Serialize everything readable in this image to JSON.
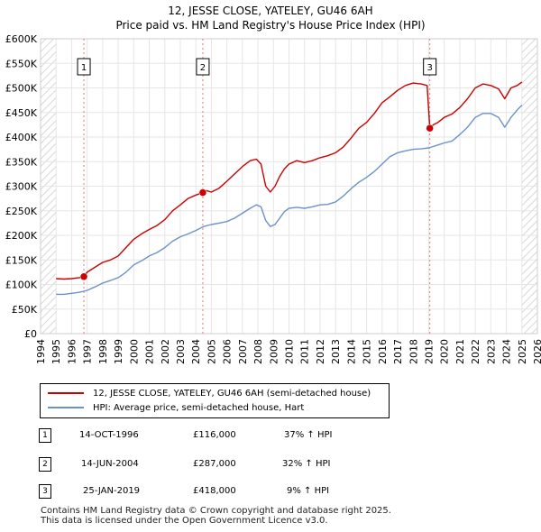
{
  "title": "12, JESSE CLOSE, YATELEY, GU46 6AH",
  "subtitle": "Price paid vs. HM Land Registry's House Price Index (HPI)",
  "chart_data": {
    "type": "line",
    "title": "12, JESSE CLOSE, YATELEY, GU46 6AH",
    "subtitle": "Price paid vs. HM Land Registry's House Price Index (HPI)",
    "xlim": [
      1994,
      2026
    ],
    "ylim": [
      0,
      600000
    ],
    "x_ticks": [
      "1994",
      "1995",
      "1996",
      "1997",
      "1998",
      "1999",
      "2000",
      "2001",
      "2002",
      "2003",
      "2004",
      "2005",
      "2006",
      "2007",
      "2008",
      "2009",
      "2010",
      "2011",
      "2012",
      "2013",
      "2014",
      "2015",
      "2016",
      "2017",
      "2018",
      "2019",
      "2020",
      "2021",
      "2022",
      "2023",
      "2024",
      "2025",
      "2026"
    ],
    "y_ticks": [
      {
        "value": 0,
        "label": "£0"
      },
      {
        "value": 50000,
        "label": "£50K"
      },
      {
        "value": 100000,
        "label": "£100K"
      },
      {
        "value": 150000,
        "label": "£150K"
      },
      {
        "value": 200000,
        "label": "£200K"
      },
      {
        "value": 250000,
        "label": "£250K"
      },
      {
        "value": 300000,
        "label": "£300K"
      },
      {
        "value": 350000,
        "label": "£350K"
      },
      {
        "value": 400000,
        "label": "£400K"
      },
      {
        "value": 450000,
        "label": "£450K"
      },
      {
        "value": 500000,
        "label": "£500K"
      },
      {
        "value": 550000,
        "label": "£550K"
      },
      {
        "value": 600000,
        "label": "£600K"
      }
    ],
    "grid": true,
    "hatched_ranges": [
      [
        1994,
        1995.0
      ],
      [
        2025.0,
        2026
      ]
    ],
    "series": [
      {
        "name": "12, JESSE CLOSE, YATELEY, GU46 6AH (semi-detached house)",
        "color": "#cc0000",
        "x": [
          1995.0,
          1995.5,
          1996.0,
          1996.5,
          1996.79,
          1997.0,
          1997.5,
          1998.0,
          1998.5,
          1999.0,
          1999.5,
          2000.0,
          2000.5,
          2001.0,
          2001.5,
          2002.0,
          2002.5,
          2003.0,
          2003.5,
          2004.0,
          2004.45,
          2004.7,
          2005.0,
          2005.5,
          2006.0,
          2006.5,
          2007.0,
          2007.5,
          2007.9,
          2008.2,
          2008.5,
          2008.8,
          2009.1,
          2009.4,
          2009.7,
          2010.0,
          2010.5,
          2011.0,
          2011.5,
          2012.0,
          2012.5,
          2013.0,
          2013.5,
          2014.0,
          2014.5,
          2015.0,
          2015.5,
          2016.0,
          2016.5,
          2017.0,
          2017.5,
          2018.0,
          2018.5,
          2018.9,
          2019.07,
          2019.3,
          2019.6,
          2020.0,
          2020.5,
          2021.0,
          2021.5,
          2022.0,
          2022.5,
          2023.0,
          2023.5,
          2023.9,
          2024.3,
          2024.7,
          2025.0
        ],
        "values": [
          112000,
          111000,
          112000,
          114000,
          116000,
          125000,
          135000,
          145000,
          150000,
          158000,
          175000,
          192000,
          203000,
          212000,
          220000,
          232000,
          250000,
          262000,
          275000,
          282000,
          287000,
          291000,
          288000,
          296000,
          310000,
          325000,
          340000,
          352000,
          355000,
          345000,
          300000,
          288000,
          300000,
          320000,
          335000,
          345000,
          352000,
          348000,
          352000,
          358000,
          362000,
          368000,
          380000,
          398000,
          418000,
          430000,
          448000,
          470000,
          482000,
          495000,
          505000,
          510000,
          508000,
          505000,
          418000,
          425000,
          430000,
          440000,
          447000,
          460000,
          478000,
          500000,
          508000,
          505000,
          498000,
          478000,
          500000,
          505000,
          512000
        ]
      },
      {
        "name": "HPI: Average price, semi-detached house, Hart",
        "color": "#6b93c9",
        "x": [
          1995.0,
          1995.5,
          1996.0,
          1996.5,
          1997.0,
          1997.5,
          1998.0,
          1998.5,
          1999.0,
          1999.5,
          2000.0,
          2000.5,
          2001.0,
          2001.5,
          2002.0,
          2002.5,
          2003.0,
          2003.5,
          2004.0,
          2004.5,
          2005.0,
          2005.5,
          2006.0,
          2006.5,
          2007.0,
          2007.5,
          2007.9,
          2008.2,
          2008.5,
          2008.8,
          2009.1,
          2009.4,
          2009.7,
          2010.0,
          2010.5,
          2011.0,
          2011.5,
          2012.0,
          2012.5,
          2013.0,
          2013.5,
          2014.0,
          2014.5,
          2015.0,
          2015.5,
          2016.0,
          2016.5,
          2017.0,
          2017.5,
          2018.0,
          2018.5,
          2019.0,
          2019.5,
          2020.0,
          2020.5,
          2021.0,
          2021.5,
          2022.0,
          2022.5,
          2023.0,
          2023.5,
          2023.9,
          2024.3,
          2024.7,
          2025.0
        ],
        "values": [
          80000,
          80000,
          82000,
          84000,
          88000,
          95000,
          103000,
          108000,
          114000,
          125000,
          140000,
          148000,
          158000,
          165000,
          175000,
          188000,
          197000,
          203000,
          210000,
          218000,
          222000,
          225000,
          228000,
          235000,
          245000,
          255000,
          262000,
          258000,
          230000,
          218000,
          222000,
          235000,
          248000,
          255000,
          257000,
          255000,
          258000,
          262000,
          263000,
          268000,
          280000,
          295000,
          308000,
          318000,
          330000,
          345000,
          360000,
          368000,
          372000,
          375000,
          376000,
          378000,
          383000,
          388000,
          392000,
          405000,
          420000,
          440000,
          448000,
          448000,
          440000,
          420000,
          440000,
          455000,
          465000
        ]
      }
    ],
    "annotations": [
      {
        "label": "1",
        "x": 1996.79,
        "value": 116000
      },
      {
        "label": "2",
        "x": 2004.45,
        "value": 287000
      },
      {
        "label": "3",
        "x": 2019.07,
        "value": 418000
      }
    ]
  },
  "legend": {
    "items": [
      {
        "label": "12, JESSE CLOSE, YATELEY, GU46 6AH (semi-detached house)",
        "color": "#cc0000"
      },
      {
        "label": "HPI: Average price, semi-detached house, Hart",
        "color": "#6b93c9"
      }
    ]
  },
  "sales": [
    {
      "num": "1",
      "date": "14-OCT-1996",
      "price": "£116,000",
      "hpi": "37% ↑ HPI"
    },
    {
      "num": "2",
      "date": "14-JUN-2004",
      "price": "£287,000",
      "hpi": "32% ↑ HPI"
    },
    {
      "num": "3",
      "date": "25-JAN-2019",
      "price": "£418,000",
      "hpi": "9% ↑ HPI"
    }
  ],
  "footer": {
    "line1": "Contains HM Land Registry data © Crown copyright and database right 2025.",
    "line2": "This data is licensed under the Open Government Licence v3.0."
  }
}
